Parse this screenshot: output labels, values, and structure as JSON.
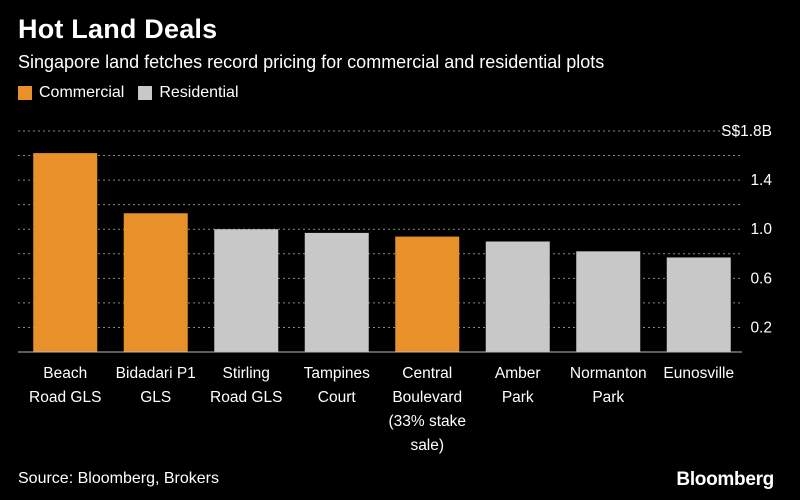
{
  "header": {
    "title": "Hot Land Deals",
    "subtitle": "Singapore land fetches record pricing for commercial and residential plots"
  },
  "legend": [
    {
      "label": "Commercial",
      "color": "#E8912B"
    },
    {
      "label": "Residential",
      "color": "#C8C8C8"
    }
  ],
  "footer": {
    "source": "Source: Bloomberg, Brokers",
    "logo": "Bloomberg"
  },
  "chart_data": {
    "type": "bar",
    "categories": [
      [
        "Beach",
        "Road GLS"
      ],
      [
        "Bidadari P1",
        "GLS"
      ],
      [
        "Stirling",
        "Road GLS"
      ],
      [
        "Tampines",
        "Court"
      ],
      [
        "Central",
        "Boulevard",
        "(33% stake",
        "sale)"
      ],
      [
        "Amber",
        "Park"
      ],
      [
        "Normanton",
        "Park"
      ],
      [
        "Eunosville"
      ]
    ],
    "series": [
      {
        "name": "Commercial",
        "color": "#E8912B",
        "values": [
          1.62,
          1.13,
          null,
          null,
          0.94,
          null,
          null,
          null
        ]
      },
      {
        "name": "Residential",
        "color": "#C8C8C8",
        "values": [
          null,
          null,
          1.0,
          0.97,
          null,
          0.9,
          0.82,
          0.77
        ]
      }
    ],
    "yticks": [
      0.2,
      0.6,
      1.0,
      1.4,
      1.8
    ],
    "ytick_labels": [
      "0.2",
      "0.6",
      "1.0",
      "1.4",
      "S$1.8B"
    ],
    "ylim": [
      0,
      1.8
    ],
    "grid": true
  }
}
